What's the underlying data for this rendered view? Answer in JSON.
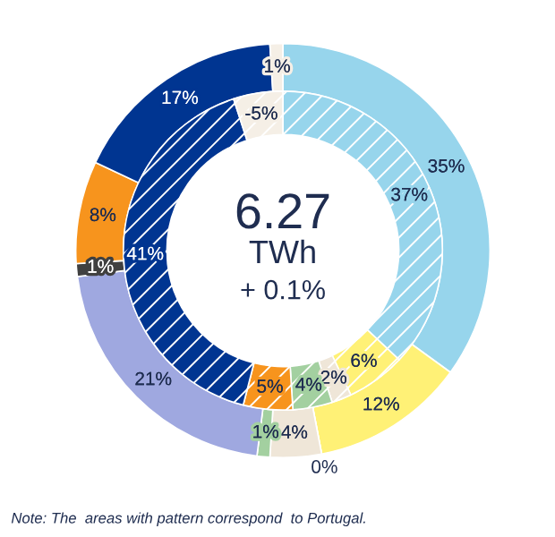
{
  "chart_data": {
    "type": "donut",
    "series": [
      {
        "values": [
          35,
          12,
          0,
          4,
          1,
          21,
          1,
          8,
          17,
          1
        ],
        "colors": [
          "#97d5ec",
          "#fff176",
          "#f0c000",
          "#efe6d8",
          "#a3d0a0",
          "#9fa8e0",
          "#404040",
          "#f7941d",
          "#003591",
          "#f5efe6"
        ],
        "value_labels": [
          "35%",
          "12%",
          "0%",
          "4%",
          "1%",
          "21%",
          "1%",
          "8%",
          "17%",
          "1%"
        ]
      },
      {
        "values": [
          37,
          6,
          2,
          4,
          5,
          41,
          5
        ],
        "colors": [
          "#97d5ec",
          "#fff176",
          "#efe6d8",
          "#a3d0a0",
          "#f7941d",
          "#003591",
          "#f5efe6"
        ],
        "value_labels": [
          "37%",
          "6%",
          "2%",
          "4%",
          "5%",
          "41%",
          null
        ]
      }
    ],
    "annotations": [
      "6.27",
      "TWh",
      "+ 0.1%",
      "Note: The  areas with pattern correspond  to Portugal.",
      "-5%"
    ],
    "legend": false
  }
}
